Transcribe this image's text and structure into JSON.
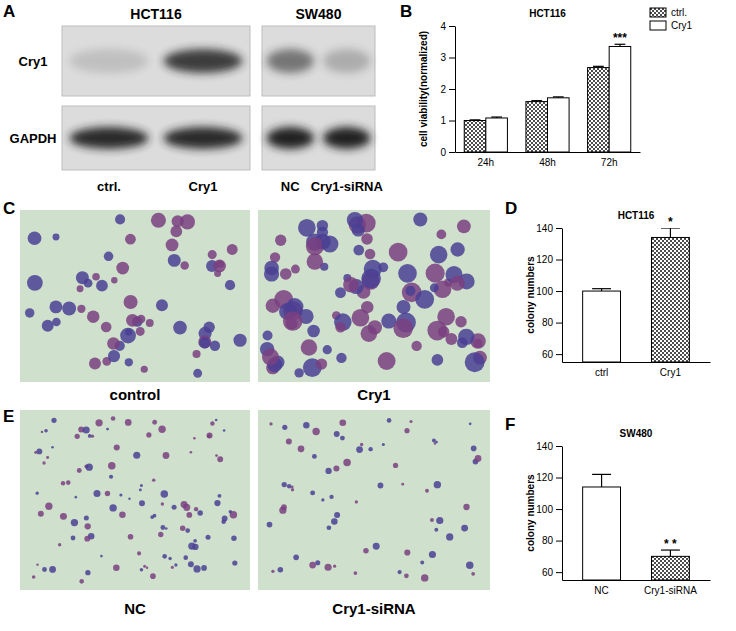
{
  "figure": {
    "panel_labels": [
      "A",
      "B",
      "C",
      "D",
      "E",
      "F"
    ],
    "blot": {
      "groups": [
        {
          "title": "HCT116",
          "lanes": [
            "ctrl.",
            "Cry1"
          ]
        },
        {
          "title": "SW480",
          "lanes": [
            "NC",
            "Cry1-siRNA"
          ]
        }
      ],
      "rows": [
        "Cry1",
        "GAPDH"
      ]
    },
    "colony_images": [
      {
        "captions": [
          "control",
          "Cry1"
        ]
      },
      {
        "captions": [
          "NC",
          "Cry1-siRNA"
        ]
      }
    ]
  },
  "chart_data": [
    {
      "type": "bar",
      "title": "HCT116",
      "y_label": "cell viability(normalized)",
      "categories": [
        "24h",
        "48h",
        "72h"
      ],
      "series": [
        {
          "name": "ctrl.",
          "color": "#4d4d4d",
          "values": [
            1.0,
            1.6,
            2.68
          ],
          "errors": [
            0.02,
            0.03,
            0.04
          ]
        },
        {
          "name": "Cry1",
          "color": "#ffffff",
          "values": [
            1.08,
            1.72,
            3.35
          ],
          "errors": [
            0.03,
            0.03,
            0.07
          ],
          "annotations": [
            null,
            null,
            "***"
          ]
        }
      ],
      "ylim": [
        0,
        4
      ],
      "yticks": [
        0,
        1,
        2,
        3,
        4
      ],
      "legend": "right"
    },
    {
      "type": "bar",
      "title": "HCT116",
      "y_label": "colony numbers",
      "categories": [
        "ctrl",
        "Cry1"
      ],
      "values": [
        100,
        134
      ],
      "errors": [
        1.5,
        6
      ],
      "annotations": [
        null,
        "*"
      ],
      "colors": [
        "#ffffff",
        "#4d4d4d"
      ],
      "ylim": [
        55,
        140
      ],
      "yticks": [
        60,
        80,
        100,
        120,
        140
      ]
    },
    {
      "type": "bar",
      "title": "SW480",
      "y_label": "colony numbers",
      "categories": [
        "NC",
        "Cry1-siRNA"
      ],
      "values": [
        114,
        70
      ],
      "errors": [
        8,
        4
      ],
      "annotations": [
        null,
        "* *"
      ],
      "colors": [
        "#ffffff",
        "#4d4d4d"
      ],
      "ylim": [
        55,
        140
      ],
      "yticks": [
        60,
        80,
        100,
        120,
        140
      ]
    }
  ]
}
